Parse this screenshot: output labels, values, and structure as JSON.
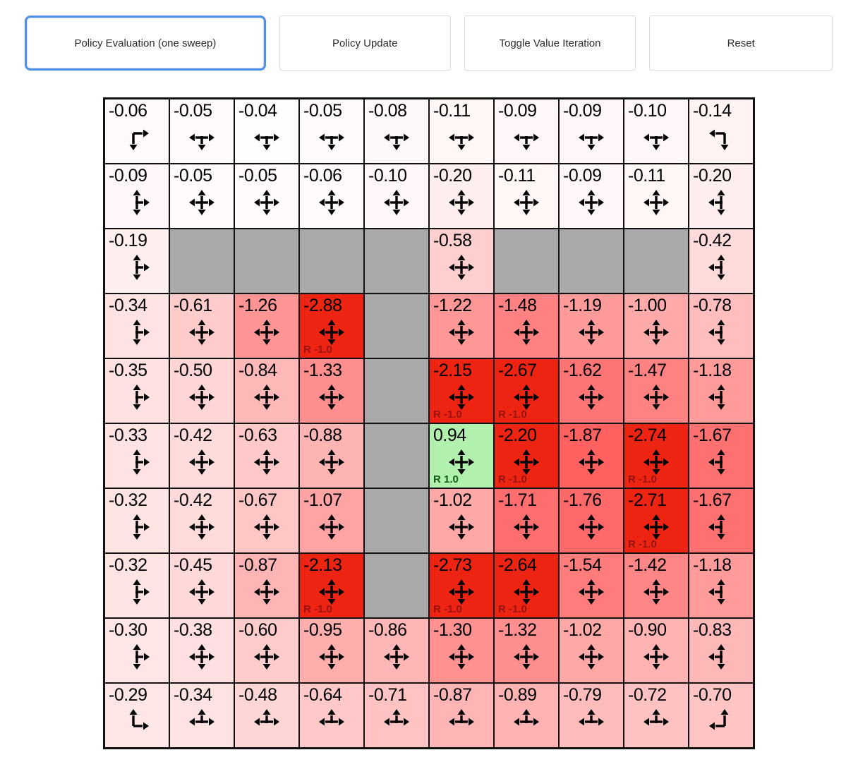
{
  "toolbar": {
    "buttons": [
      {
        "label": "Policy Evaluation (one sweep)",
        "active": true
      },
      {
        "label": "Policy Update",
        "active": false
      },
      {
        "label": "Toggle Value Iteration",
        "active": false
      },
      {
        "label": "Reset",
        "active": false
      }
    ]
  },
  "colors": {
    "active_button_border": "#4f8fe8",
    "button_border": "#dcdcdc",
    "wall": "#a9a9a9",
    "reward_negative_bg": "#ee2413",
    "goal_bg": "#b2f0ad",
    "reward_negative_text": "#991111",
    "reward_positive_text": "#135e13",
    "grid_line": "#111111"
  },
  "grid": {
    "rows": 10,
    "cols": 10,
    "cells": [
      [
        {
          "v": "-0.06",
          "a": "RD"
        },
        {
          "v": "-0.05",
          "a": "LRD"
        },
        {
          "v": "-0.04",
          "a": "LRD"
        },
        {
          "v": "-0.05",
          "a": "LRD"
        },
        {
          "v": "-0.08",
          "a": "LRD"
        },
        {
          "v": "-0.11",
          "a": "LRD"
        },
        {
          "v": "-0.09",
          "a": "LRD"
        },
        {
          "v": "-0.09",
          "a": "LRD"
        },
        {
          "v": "-0.10",
          "a": "LRD"
        },
        {
          "v": "-0.14",
          "a": "LD"
        }
      ],
      [
        {
          "v": "-0.09",
          "a": "UDR"
        },
        {
          "v": "-0.05",
          "a": "UDLR"
        },
        {
          "v": "-0.05",
          "a": "UDLR"
        },
        {
          "v": "-0.06",
          "a": "UDLR"
        },
        {
          "v": "-0.10",
          "a": "UDLR"
        },
        {
          "v": "-0.20",
          "a": "UDLR"
        },
        {
          "v": "-0.11",
          "a": "UDLR"
        },
        {
          "v": "-0.09",
          "a": "UDLR"
        },
        {
          "v": "-0.11",
          "a": "UDLR"
        },
        {
          "v": "-0.20",
          "a": "UDL"
        }
      ],
      [
        {
          "v": "-0.19",
          "a": "UDR"
        },
        {
          "wall": true
        },
        {
          "wall": true
        },
        {
          "wall": true
        },
        {
          "wall": true
        },
        {
          "v": "-0.58",
          "a": "UDLR"
        },
        {
          "wall": true
        },
        {
          "wall": true
        },
        {
          "wall": true
        },
        {
          "v": "-0.42",
          "a": "UDL"
        }
      ],
      [
        {
          "v": "-0.34",
          "a": "UDR"
        },
        {
          "v": "-0.61",
          "a": "UDLR"
        },
        {
          "v": "-1.26",
          "a": "UDLR"
        },
        {
          "v": "-2.88",
          "a": "UDLR",
          "r": "R -1.0"
        },
        {
          "wall": true
        },
        {
          "v": "-1.22",
          "a": "UDLR"
        },
        {
          "v": "-1.48",
          "a": "UDLR"
        },
        {
          "v": "-1.19",
          "a": "UDLR"
        },
        {
          "v": "-1.00",
          "a": "UDLR"
        },
        {
          "v": "-0.78",
          "a": "UDL"
        }
      ],
      [
        {
          "v": "-0.35",
          "a": "UDR"
        },
        {
          "v": "-0.50",
          "a": "UDLR"
        },
        {
          "v": "-0.84",
          "a": "UDLR"
        },
        {
          "v": "-1.33",
          "a": "UDLR"
        },
        {
          "wall": true
        },
        {
          "v": "-2.15",
          "a": "UDLR",
          "r": "R -1.0"
        },
        {
          "v": "-2.67",
          "a": "UDLR",
          "r": "R -1.0"
        },
        {
          "v": "-1.62",
          "a": "UDLR"
        },
        {
          "v": "-1.47",
          "a": "UDLR"
        },
        {
          "v": "-1.18",
          "a": "UDL"
        }
      ],
      [
        {
          "v": "-0.33",
          "a": "UDR"
        },
        {
          "v": "-0.42",
          "a": "UDLR"
        },
        {
          "v": "-0.63",
          "a": "UDLR"
        },
        {
          "v": "-0.88",
          "a": "UDLR"
        },
        {
          "wall": true
        },
        {
          "v": "0.94",
          "a": "UDLR",
          "r": "R 1.0",
          "goal": true
        },
        {
          "v": "-2.20",
          "a": "UDLR",
          "r": "R -1.0"
        },
        {
          "v": "-1.87",
          "a": "UDLR"
        },
        {
          "v": "-2.74",
          "a": "UDLR",
          "r": "R -1.0"
        },
        {
          "v": "-1.67",
          "a": "UDL"
        }
      ],
      [
        {
          "v": "-0.32",
          "a": "UDR"
        },
        {
          "v": "-0.42",
          "a": "UDLR"
        },
        {
          "v": "-0.67",
          "a": "UDLR"
        },
        {
          "v": "-1.07",
          "a": "UDLR"
        },
        {
          "wall": true
        },
        {
          "v": "-1.02",
          "a": "UDLR"
        },
        {
          "v": "-1.71",
          "a": "UDLR"
        },
        {
          "v": "-1.76",
          "a": "UDLR"
        },
        {
          "v": "-2.71",
          "a": "UDLR",
          "r": "R -1.0"
        },
        {
          "v": "-1.67",
          "a": "UDL"
        }
      ],
      [
        {
          "v": "-0.32",
          "a": "UDR"
        },
        {
          "v": "-0.45",
          "a": "UDLR"
        },
        {
          "v": "-0.87",
          "a": "UDLR"
        },
        {
          "v": "-2.13",
          "a": "UDLR",
          "r": "R -1.0"
        },
        {
          "wall": true
        },
        {
          "v": "-2.73",
          "a": "UDLR",
          "r": "R -1.0"
        },
        {
          "v": "-2.64",
          "a": "UDLR",
          "r": "R -1.0"
        },
        {
          "v": "-1.54",
          "a": "UDLR"
        },
        {
          "v": "-1.42",
          "a": "UDLR"
        },
        {
          "v": "-1.18",
          "a": "UDL"
        }
      ],
      [
        {
          "v": "-0.30",
          "a": "UDR"
        },
        {
          "v": "-0.38",
          "a": "UDLR"
        },
        {
          "v": "-0.60",
          "a": "UDLR"
        },
        {
          "v": "-0.95",
          "a": "UDLR"
        },
        {
          "v": "-0.86",
          "a": "UDLR"
        },
        {
          "v": "-1.30",
          "a": "UDLR"
        },
        {
          "v": "-1.32",
          "a": "UDLR"
        },
        {
          "v": "-1.02",
          "a": "UDLR"
        },
        {
          "v": "-0.90",
          "a": "UDLR"
        },
        {
          "v": "-0.83",
          "a": "UDL"
        }
      ],
      [
        {
          "v": "-0.29",
          "a": "UR"
        },
        {
          "v": "-0.34",
          "a": "ULR"
        },
        {
          "v": "-0.48",
          "a": "ULR"
        },
        {
          "v": "-0.64",
          "a": "ULR"
        },
        {
          "v": "-0.71",
          "a": "ULR"
        },
        {
          "v": "-0.87",
          "a": "ULR"
        },
        {
          "v": "-0.89",
          "a": "ULR"
        },
        {
          "v": "-0.79",
          "a": "ULR"
        },
        {
          "v": "-0.72",
          "a": "ULR"
        },
        {
          "v": "-0.70",
          "a": "UL"
        }
      ]
    ]
  }
}
